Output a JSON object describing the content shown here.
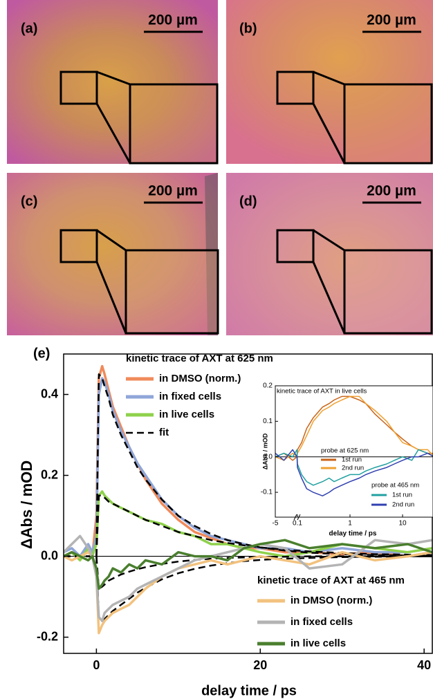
{
  "panels": [
    {
      "label": "(a)",
      "scale_bar": "200 µm"
    },
    {
      "label": "(b)",
      "scale_bar": "200 µm"
    },
    {
      "label": "(c)",
      "scale_bar": "200 µm"
    },
    {
      "label": "(d)",
      "scale_bar": "200 µm"
    }
  ],
  "chart_data": [
    {
      "type": "line",
      "panel_label": "(e)",
      "x_label": "delay time / ps",
      "y_label": "ΔAbs / mOD",
      "xlim": [
        -4,
        41
      ],
      "ylim": [
        -0.24,
        0.5
      ],
      "xticks": [
        0,
        20,
        40
      ],
      "yticks": [
        -0.2,
        {
          "value": 0,
          "label": "0.0"
        },
        0.2,
        0.4
      ],
      "x": [
        -4,
        -3,
        -2,
        -1,
        -0.5,
        0,
        0.3,
        0.7,
        1,
        1.5,
        2,
        3,
        4,
        5,
        6,
        8,
        10,
        12,
        14,
        16,
        18,
        20,
        23,
        26,
        30,
        34,
        38,
        41
      ],
      "groups": [
        {
          "title": "kinetic trace of AXT at 625 nm",
          "series": [
            {
              "name": "in DMSO (norm.)",
              "color": "#f08a5a",
              "values": [
                0,
                0.01,
                0,
                0.01,
                0,
                0.1,
                0.44,
                0.47,
                0.45,
                0.41,
                0.37,
                0.32,
                0.27,
                0.23,
                0.19,
                0.13,
                0.09,
                0.06,
                0.045,
                0.03,
                0.02,
                0.02,
                0.01,
                0.01,
                0.005,
                0.01,
                0,
                0.01
              ]
            },
            {
              "name": "in fixed cells",
              "color": "#8fa6d8",
              "values": [
                0.01,
                0.02,
                0,
                0.03,
                0.01,
                0.05,
                0.4,
                0.44,
                0.43,
                0.4,
                0.36,
                0.31,
                0.27,
                0.23,
                0.2,
                0.14,
                0.1,
                0.07,
                0.05,
                0.04,
                0.03,
                0.02,
                0.02,
                0.01,
                0.02,
                0.01,
                0.01,
                0.02
              ]
            },
            {
              "name": "in live cells",
              "color": "#8ed14b",
              "values": [
                0,
                0.01,
                -0.01,
                0.02,
                0,
                0.03,
                0.15,
                0.16,
                0.15,
                0.14,
                0.13,
                0.12,
                0.11,
                0.1,
                0.09,
                0.08,
                0.06,
                0.05,
                0.03,
                0.03,
                0.02,
                0.01,
                0,
                0.01,
                0.03,
                0.02,
                0.01,
                0.02
              ]
            },
            {
              "name": "fit",
              "color": "#000000",
              "dash": true,
              "values": [
                0,
                0,
                0,
                0,
                0,
                0,
                0.45,
                0.44,
                0.42,
                0.39,
                0.35,
                0.3,
                0.26,
                0.22,
                0.19,
                0.14,
                0.1,
                0.075,
                0.055,
                0.04,
                0.03,
                0.022,
                0.014,
                0.009,
                0.005,
                0.003,
                0.002,
                0.001
              ]
            },
            {
              "color": "#000000",
              "dash": true,
              "values": [
                0,
                0,
                0,
                0,
                0,
                0,
                0.15,
                0.15,
                0.145,
                0.135,
                0.13,
                0.12,
                0.11,
                0.1,
                0.09,
                0.075,
                0.06,
                0.05,
                0.04,
                0.033,
                0.027,
                0.022,
                0.016,
                0.012,
                0.008,
                0.005,
                0.004,
                0.003
              ]
            },
            {
              "color": "#000000",
              "dash": true,
              "values": [
                0,
                0,
                0,
                0,
                0,
                0,
                -0.15,
                -0.16,
                -0.155,
                -0.145,
                -0.135,
                -0.12,
                -0.105,
                -0.09,
                -0.078,
                -0.057,
                -0.042,
                -0.031,
                -0.023,
                -0.017,
                -0.012,
                -0.009,
                -0.006,
                -0.004,
                -0.002,
                -0.001,
                0,
                0
              ]
            },
            {
              "color": "#000000",
              "dash": true,
              "values": [
                0,
                0,
                0,
                0,
                0,
                0,
                -0.08,
                -0.075,
                -0.07,
                -0.06,
                -0.055,
                -0.045,
                -0.038,
                -0.032,
                -0.027,
                -0.019,
                -0.013,
                -0.009,
                -0.006,
                -0.004,
                -0.003,
                -0.002,
                -0.001,
                0,
                0,
                0,
                0,
                0
              ]
            }
          ]
        },
        {
          "title": "kinetic trace of AXT at 465 nm",
          "series": [
            {
              "name": "in DMSO (norm.)",
              "color": "#f2c27e",
              "values": [
                0,
                -0.01,
                0,
                0.01,
                0,
                -0.05,
                -0.19,
                -0.17,
                -0.16,
                -0.15,
                -0.14,
                -0.13,
                -0.12,
                -0.1,
                -0.08,
                -0.05,
                -0.03,
                -0.02,
                -0.01,
                -0.02,
                -0.01,
                0,
                -0.01,
                -0.02,
                0.01,
                -0.01,
                0,
                0.01
              ]
            },
            {
              "name": "in fixed cells",
              "color": "#b4b4b4",
              "values": [
                0.01,
                0.03,
                0.05,
                0.02,
                0,
                -0.05,
                -0.15,
                -0.16,
                -0.14,
                -0.13,
                -0.12,
                -0.11,
                -0.1,
                -0.08,
                -0.07,
                -0.05,
                -0.03,
                -0.01,
                0,
                0.01,
                0.02,
                0.03,
                0.02,
                -0.03,
                -0.02,
                0.04,
                0.03,
                0.04
              ]
            },
            {
              "name": "in live cells",
              "color": "#4a7f2e",
              "values": [
                0,
                0.01,
                0,
                -0.01,
                0,
                -0.03,
                -0.08,
                -0.07,
                -0.06,
                -0.05,
                -0.03,
                -0.04,
                -0.02,
                -0.03,
                -0.01,
                -0.02,
                0.01,
                0,
                0,
                -0.01,
                0.02,
                0.03,
                0.04,
                0.02,
                0.03,
                0.02,
                0.03,
                0.01
              ]
            }
          ]
        }
      ]
    },
    {
      "type": "line",
      "title": "kinetic trace of AXT in live cells",
      "x_label": "delay time / ps",
      "y_label": "ΔAbs / mOD",
      "xscale": "linear-log",
      "x_break": 0.1,
      "xlim": [
        -5,
        50
      ],
      "ylim": [
        -0.17,
        0.2
      ],
      "xticks": [
        -5,
        0.1,
        1,
        10
      ],
      "yticks": [
        -0.1,
        {
          "value": 0,
          "label": "0.0"
        },
        0.1,
        0.2
      ],
      "x": [
        -5,
        -3,
        -1,
        0,
        0.1,
        0.12,
        0.15,
        0.2,
        0.3,
        0.4,
        0.5,
        0.7,
        1,
        1.5,
        2,
        3,
        5,
        7,
        10,
        15,
        20,
        30,
        40
      ],
      "groups": [
        {
          "title": "probe at 625 nm",
          "series": [
            {
              "name": "1st run",
              "color": "#c8641a",
              "values": [
                0,
                0.01,
                -0.01,
                0,
                0.02,
                0.04,
                0.08,
                0.11,
                0.14,
                0.15,
                0.16,
                0.17,
                0.17,
                0.16,
                0.15,
                0.12,
                0.09,
                0.07,
                0.05,
                0.03,
                0.02,
                0.01,
                0.01
              ]
            },
            {
              "name": "2nd run",
              "color": "#f0a030",
              "values": [
                0,
                -0.01,
                0.01,
                0,
                0.01,
                0.03,
                0.06,
                0.1,
                0.13,
                0.14,
                0.15,
                0.16,
                0.17,
                0.17,
                0.15,
                0.13,
                0.1,
                0.07,
                0.04,
                0.03,
                0.02,
                0.02,
                0
              ]
            }
          ]
        },
        {
          "title": "probe at 465 nm",
          "series": [
            {
              "name": "1st run",
              "color": "#20a0a0",
              "values": [
                0,
                0.01,
                0,
                0.02,
                -0.02,
                -0.05,
                -0.07,
                -0.08,
                -0.07,
                -0.06,
                -0.07,
                -0.06,
                -0.05,
                -0.05,
                -0.04,
                -0.03,
                -0.02,
                -0.01,
                0,
                -0.01,
                0.02,
                0.01,
                0
              ]
            },
            {
              "name": "2nd run",
              "color": "#3040b0",
              "values": [
                0.01,
                -0.01,
                0.02,
                0,
                -0.03,
                -0.06,
                -0.09,
                -0.1,
                -0.11,
                -0.1,
                -0.09,
                -0.08,
                -0.07,
                -0.06,
                -0.05,
                -0.04,
                -0.03,
                -0.02,
                -0.01,
                0,
                0,
                0.01,
                0
              ]
            }
          ]
        }
      ]
    }
  ]
}
